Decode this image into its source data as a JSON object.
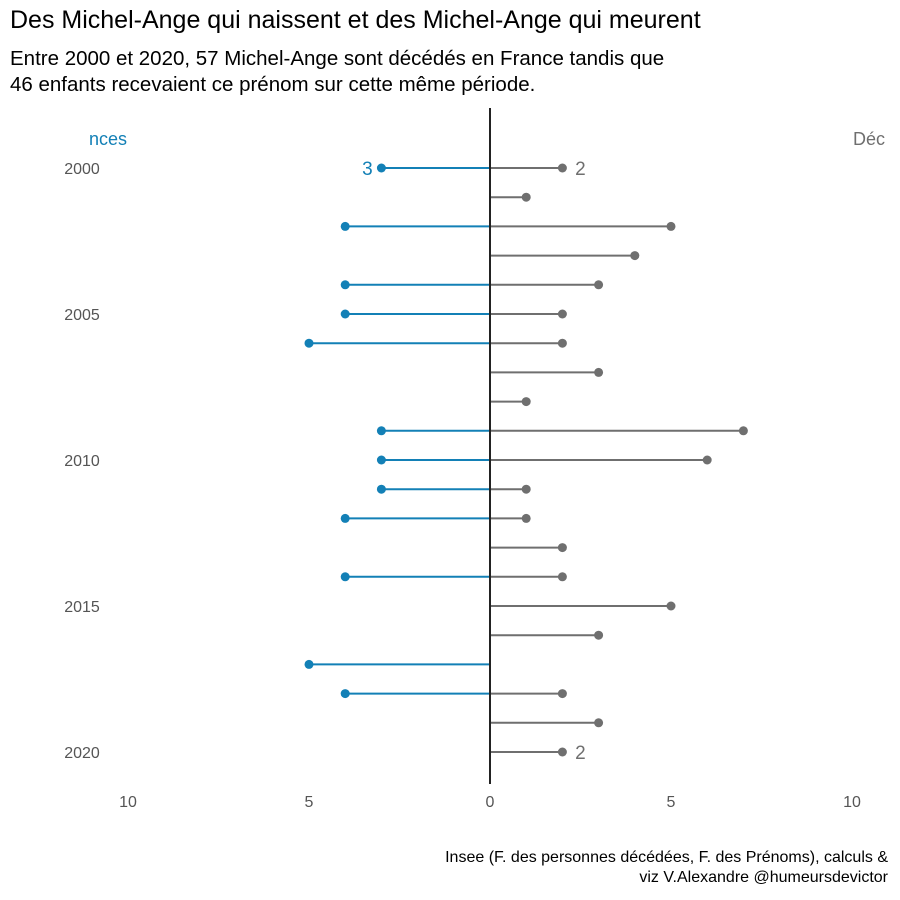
{
  "title": "Des Michel-Ange qui naissent et des Michel-Ange qui meurent",
  "subtitle_lines": [
    "Entre 2000 et 2020, 57 Michel-Ange sont décédés en France tandis que",
    "46 enfants recevaient ce prénom sur cette même période."
  ],
  "caption_lines": [
    "Insee (F. des personnes décédées, F. des Prénoms), calculs &",
    "viz V.Alexandre @humeursdevictor"
  ],
  "colors": {
    "births": "#1380b6",
    "deaths": "#6f6f6f",
    "axis": "#222222",
    "tick_text": "#555555"
  },
  "chart_data": {
    "type": "lollipop",
    "years": [
      2000,
      2001,
      2002,
      2003,
      2004,
      2005,
      2006,
      2007,
      2008,
      2009,
      2010,
      2011,
      2012,
      2013,
      2014,
      2015,
      2016,
      2017,
      2018,
      2019,
      2020
    ],
    "series": [
      {
        "name": "…nces",
        "side": "left",
        "values": [
          3,
          0,
          4,
          0,
          4,
          4,
          5,
          0,
          0,
          3,
          3,
          3,
          4,
          0,
          4,
          0,
          0,
          5,
          4,
          0,
          0
        ]
      },
      {
        "name": "Déc",
        "side": "right",
        "values": [
          2,
          1,
          5,
          4,
          3,
          2,
          2,
          3,
          1,
          7,
          6,
          1,
          1,
          2,
          2,
          5,
          3,
          0,
          2,
          3,
          2
        ]
      }
    ],
    "y_ticks": [
      "2000",
      "2005",
      "2010",
      "2015",
      "2020"
    ],
    "x_ticks": [
      "10",
      "5",
      "0",
      "5",
      "10"
    ],
    "xlim": [
      -10,
      10
    ],
    "value_labels": [
      {
        "series": "left",
        "year": 2000,
        "text": "3"
      },
      {
        "series": "right",
        "year": 2000,
        "text": "2"
      },
      {
        "series": "right",
        "year": 2020,
        "text": "2"
      }
    ],
    "grid": false
  }
}
